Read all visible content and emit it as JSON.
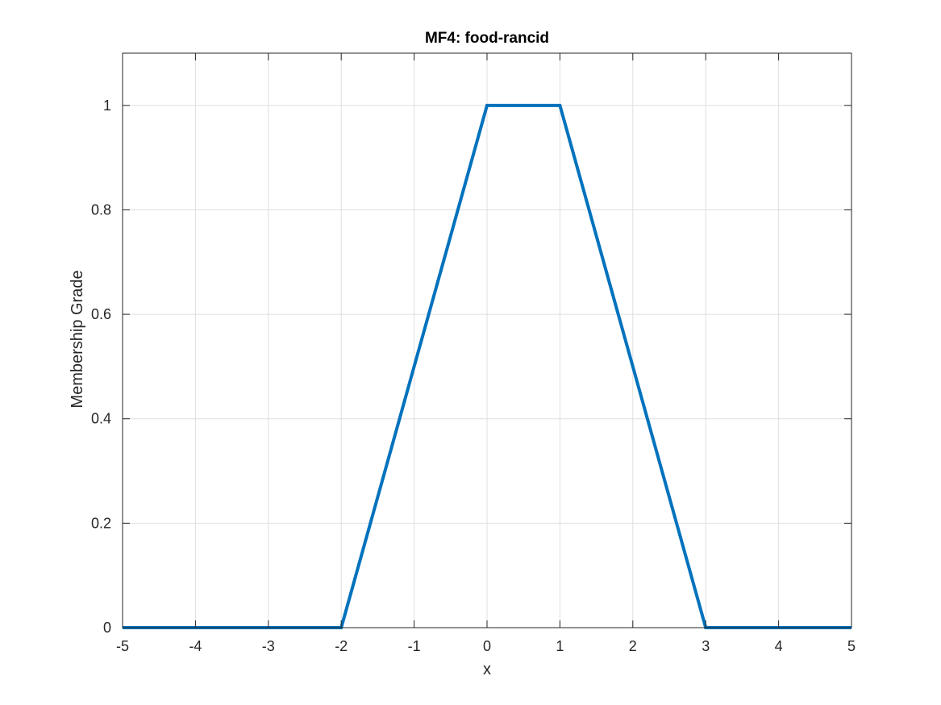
{
  "chart_data": {
    "type": "line",
    "title": "MF4: food-rancid",
    "xlabel": "x",
    "ylabel": "Membership Grade",
    "xlim": [
      -5,
      5
    ],
    "ylim": [
      0,
      1.1
    ],
    "grid": true,
    "x_ticks": [
      -5,
      -4,
      -3,
      -2,
      -1,
      0,
      1,
      2,
      3,
      4,
      5
    ],
    "x_tick_labels": [
      "-5",
      "-4",
      "-3",
      "-2",
      "-1",
      "0",
      "1",
      "2",
      "3",
      "4",
      "5"
    ],
    "y_ticks": [
      0,
      0.2,
      0.4,
      0.6,
      0.8,
      1
    ],
    "y_tick_labels": [
      "0",
      "0.2",
      "0.4",
      "0.6",
      "0.8",
      "1"
    ],
    "series": [
      {
        "color": "#0072BD",
        "x": [
          -5,
          -2,
          0,
          1,
          3,
          5
        ],
        "y": [
          0,
          0,
          1,
          1,
          0,
          0
        ]
      }
    ]
  }
}
